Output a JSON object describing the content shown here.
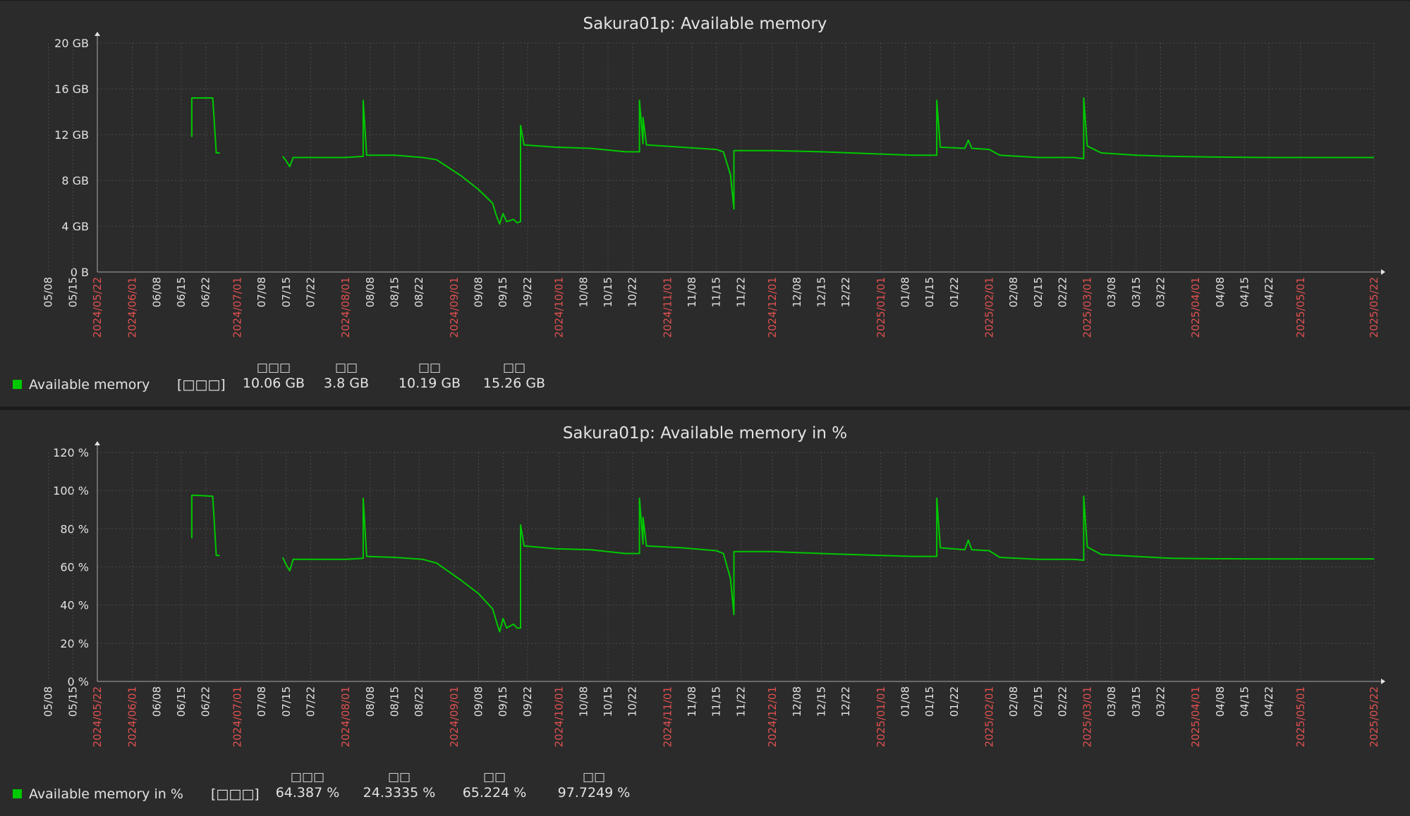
{
  "chart_data": [
    {
      "type": "line",
      "title": "Sakura01p: Available memory",
      "xlabel": "",
      "ylabel": "",
      "xlim": [
        "2024-05-22",
        "2025-05-22"
      ],
      "ylim": [
        0,
        20
      ],
      "yunit": "GB",
      "y_ticks": [
        "20 GB",
        "16 GB",
        "12 GB",
        "8 GB",
        "4 GB",
        "0 B"
      ],
      "y_tick_values": [
        20,
        16,
        12,
        8,
        4,
        0
      ],
      "grid": true,
      "legend_position": "bottom-left",
      "series": [
        {
          "name": "Available memory",
          "color": "#00c800",
          "segments": [
            [
              [
                "2024-06-18",
                11.8
              ],
              [
                "2024-06-18",
                15.2
              ],
              [
                "2024-06-19",
                15.2
              ],
              [
                "2024-06-24",
                15.2
              ],
              [
                "2024-06-25",
                10.4
              ],
              [
                "2024-06-26",
                10.4
              ]
            ],
            [
              [
                "2024-07-14",
                10.1
              ],
              [
                "2024-07-15",
                9.7
              ],
              [
                "2024-07-16",
                9.2
              ],
              [
                "2024-07-17",
                10.0
              ],
              [
                "2024-07-25",
                10.0
              ],
              [
                "2024-08-01",
                10.0
              ],
              [
                "2024-08-06",
                10.1
              ],
              [
                "2024-08-06",
                15.0
              ],
              [
                "2024-08-07",
                10.2
              ],
              [
                "2024-08-15",
                10.2
              ],
              [
                "2024-08-23",
                10.0
              ],
              [
                "2024-08-27",
                9.8
              ],
              [
                "2024-09-03",
                8.4
              ],
              [
                "2024-09-08",
                7.2
              ],
              [
                "2024-09-12",
                6.0
              ],
              [
                "2024-09-13",
                5.0
              ],
              [
                "2024-09-14",
                4.2
              ],
              [
                "2024-09-15",
                5.1
              ],
              [
                "2024-09-16",
                4.4
              ],
              [
                "2024-09-18",
                4.6
              ],
              [
                "2024-09-19",
                4.3
              ],
              [
                "2024-09-20",
                4.4
              ],
              [
                "2024-09-20",
                12.8
              ],
              [
                "2024-09-21",
                11.1
              ],
              [
                "2024-09-30",
                10.9
              ],
              [
                "2024-10-10",
                10.8
              ],
              [
                "2024-10-20",
                10.5
              ],
              [
                "2024-10-24",
                10.5
              ],
              [
                "2024-10-24",
                15.0
              ],
              [
                "2024-10-25",
                11.2
              ],
              [
                "2024-10-25",
                13.5
              ],
              [
                "2024-10-26",
                11.1
              ],
              [
                "2024-11-05",
                10.9
              ],
              [
                "2024-11-15",
                10.7
              ],
              [
                "2024-11-17",
                10.5
              ],
              [
                "2024-11-19",
                8.5
              ],
              [
                "2024-11-20",
                5.5
              ],
              [
                "2024-11-20",
                10.6
              ],
              [
                "2024-12-01",
                10.6
              ],
              [
                "2024-12-15",
                10.5
              ],
              [
                "2025-01-01",
                10.3
              ],
              [
                "2025-01-10",
                10.2
              ],
              [
                "2025-01-17",
                10.2
              ],
              [
                "2025-01-17",
                15.0
              ],
              [
                "2025-01-18",
                10.9
              ],
              [
                "2025-01-25",
                10.8
              ],
              [
                "2025-01-26",
                11.5
              ],
              [
                "2025-01-27",
                10.8
              ],
              [
                "2025-02-01",
                10.7
              ],
              [
                "2025-02-04",
                10.2
              ],
              [
                "2025-02-15",
                10.0
              ],
              [
                "2025-02-25",
                10.0
              ],
              [
                "2025-02-28",
                9.9
              ],
              [
                "2025-02-28",
                15.2
              ],
              [
                "2025-03-01",
                11.0
              ],
              [
                "2025-03-05",
                10.4
              ],
              [
                "2025-03-15",
                10.2
              ],
              [
                "2025-03-25",
                10.1
              ],
              [
                "2025-04-05",
                10.05
              ],
              [
                "2025-04-20",
                10.0
              ],
              [
                "2025-05-22",
                10.0
              ]
            ]
          ]
        }
      ]
    },
    {
      "type": "line",
      "title": "Sakura01p: Available memory in %",
      "xlabel": "",
      "ylabel": "",
      "xlim": [
        "2024-05-22",
        "2025-05-22"
      ],
      "ylim": [
        0,
        120
      ],
      "yunit": "%",
      "y_ticks": [
        "120 %",
        "100 %",
        "80 %",
        "60 %",
        "40 %",
        "20 %",
        "0 %"
      ],
      "y_tick_values": [
        120,
        100,
        80,
        60,
        40,
        20,
        0
      ],
      "grid": true,
      "legend_position": "bottom-left",
      "series": [
        {
          "name": "Available memory in %",
          "color": "#00c800",
          "segments": [
            [
              [
                "2024-06-18",
                75
              ],
              [
                "2024-06-18",
                97.5
              ],
              [
                "2024-06-19",
                97.5
              ],
              [
                "2024-06-24",
                97
              ],
              [
                "2024-06-25",
                66
              ],
              [
                "2024-06-26",
                66
              ]
            ],
            [
              [
                "2024-07-14",
                65
              ],
              [
                "2024-07-15",
                61
              ],
              [
                "2024-07-16",
                58
              ],
              [
                "2024-07-17",
                64
              ],
              [
                "2024-07-25",
                64
              ],
              [
                "2024-08-01",
                64
              ],
              [
                "2024-08-06",
                64.5
              ],
              [
                "2024-08-06",
                96
              ],
              [
                "2024-08-07",
                65.5
              ],
              [
                "2024-08-15",
                65
              ],
              [
                "2024-08-23",
                64
              ],
              [
                "2024-08-27",
                62
              ],
              [
                "2024-09-03",
                53
              ],
              [
                "2024-09-08",
                46
              ],
              [
                "2024-09-12",
                38
              ],
              [
                "2024-09-13",
                32
              ],
              [
                "2024-09-14",
                26
              ],
              [
                "2024-09-15",
                33
              ],
              [
                "2024-09-16",
                28
              ],
              [
                "2024-09-18",
                30
              ],
              [
                "2024-09-19",
                28
              ],
              [
                "2024-09-20",
                28
              ],
              [
                "2024-09-20",
                82
              ],
              [
                "2024-09-21",
                71
              ],
              [
                "2024-09-30",
                69.5
              ],
              [
                "2024-10-10",
                69
              ],
              [
                "2024-10-20",
                67
              ],
              [
                "2024-10-24",
                67
              ],
              [
                "2024-10-24",
                96
              ],
              [
                "2024-10-25",
                72
              ],
              [
                "2024-10-25",
                86
              ],
              [
                "2024-10-26",
                71
              ],
              [
                "2024-11-05",
                70
              ],
              [
                "2024-11-15",
                68.5
              ],
              [
                "2024-11-17",
                67
              ],
              [
                "2024-11-19",
                54
              ],
              [
                "2024-11-20",
                35
              ],
              [
                "2024-11-20",
                68
              ],
              [
                "2024-12-01",
                68
              ],
              [
                "2024-12-15",
                67
              ],
              [
                "2025-01-01",
                66
              ],
              [
                "2025-01-10",
                65.5
              ],
              [
                "2025-01-17",
                65.5
              ],
              [
                "2025-01-17",
                96
              ],
              [
                "2025-01-18",
                70
              ],
              [
                "2025-01-25",
                69
              ],
              [
                "2025-01-26",
                74
              ],
              [
                "2025-01-27",
                69
              ],
              [
                "2025-02-01",
                68.5
              ],
              [
                "2025-02-04",
                65
              ],
              [
                "2025-02-15",
                64
              ],
              [
                "2025-02-25",
                64
              ],
              [
                "2025-02-28",
                63.5
              ],
              [
                "2025-02-28",
                97
              ],
              [
                "2025-03-01",
                70.5
              ],
              [
                "2025-03-05",
                66.5
              ],
              [
                "2025-03-15",
                65.5
              ],
              [
                "2025-03-25",
                64.5
              ],
              [
                "2025-04-05",
                64.3
              ],
              [
                "2025-04-20",
                64.2
              ],
              [
                "2025-05-22",
                64.2
              ]
            ]
          ]
        }
      ]
    }
  ],
  "x_axis": {
    "major_ticks": [
      "2024/05/22",
      "2024/06/01",
      "2024/07/01",
      "2024/08/01",
      "2024/09/01",
      "2024/10/01",
      "2024/11/01",
      "2024/12/01",
      "2025/01/01",
      "2025/02/01",
      "2025/03/01",
      "2025/04/01",
      "2025/05/01",
      "2025/05/22"
    ],
    "minor_ticks": [
      "06/08",
      "06/15",
      "06/22",
      "07/08",
      "07/15",
      "07/22",
      "08/08",
      "08/15",
      "08/22",
      "09/08",
      "09/15",
      "09/22",
      "10/08",
      "10/15",
      "10/22",
      "11/08",
      "11/15",
      "11/22",
      "12/08",
      "12/15",
      "12/22",
      "01/08",
      "01/15",
      "01/22",
      "02/08",
      "02/15",
      "02/22",
      "03/08",
      "03/15",
      "03/22",
      "04/08",
      "04/15",
      "04/22",
      "05/08",
      "05/15"
    ],
    "major_color": "#e05050",
    "minor_color": "#e3e3e3"
  },
  "legends": [
    {
      "name": "Available memory",
      "func": "[□□□]",
      "stats": [
        {
          "head": "□□□",
          "value": "10.06 GB"
        },
        {
          "head": "□□",
          "value": "3.8 GB"
        },
        {
          "head": "□□",
          "value": "10.19 GB"
        },
        {
          "head": "□□",
          "value": "15.26 GB"
        }
      ]
    },
    {
      "name": "Available memory in %",
      "func": "[□□□]",
      "stats": [
        {
          "head": "□□□",
          "value": "64.387 %"
        },
        {
          "head": "□□",
          "value": "24.3335 %"
        },
        {
          "head": "□□",
          "value": "65.224 %"
        },
        {
          "head": "□□",
          "value": "97.7249 %"
        }
      ]
    }
  ],
  "colors": {
    "background": "#2b2b2b",
    "grid": "#4a4a4a",
    "axis": "#aaaaaa",
    "text": "#e3e3e3",
    "line": "#00c800",
    "spike": "#c8b880"
  }
}
